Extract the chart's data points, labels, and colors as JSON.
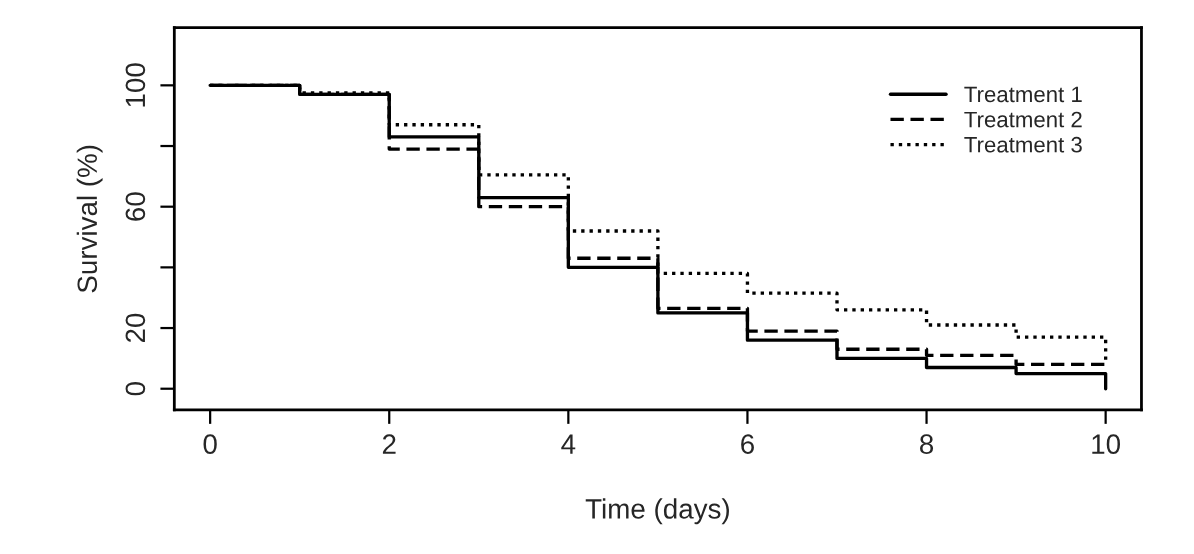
{
  "chart_data": {
    "type": "step",
    "xlabel": "Time (days)",
    "ylabel": "Survival (%)",
    "x": [
      0,
      1,
      2,
      3,
      4,
      5,
      6,
      7,
      8,
      9,
      10
    ],
    "series": [
      {
        "name": "Treatment 1",
        "color": "#000000",
        "line_style": "solid",
        "values": [
          100,
          97,
          83,
          63,
          40,
          25,
          16,
          10,
          7,
          5,
          0
        ]
      },
      {
        "name": "Treatment 2",
        "color": "#000000",
        "line_style": "dashed",
        "values": [
          100,
          97,
          79,
          60,
          43,
          26.5,
          19,
          13,
          11,
          8,
          8
        ]
      },
      {
        "name": "Treatment 3",
        "color": "#000000",
        "line_style": "dotted",
        "values": [
          100,
          97.5,
          87,
          70.5,
          52,
          38,
          31.5,
          26,
          21,
          17,
          8
        ]
      }
    ],
    "xlim": [
      -0.4,
      10.4
    ],
    "ylim": [
      -7,
      119
    ],
    "xticks": [
      0,
      2,
      4,
      6,
      8,
      10
    ],
    "yticks": [
      0,
      20,
      {
        "value": 40,
        "label": null
      },
      60,
      {
        "value": 80,
        "label": null
      },
      100
    ],
    "legend": "top right",
    "grid": false
  }
}
